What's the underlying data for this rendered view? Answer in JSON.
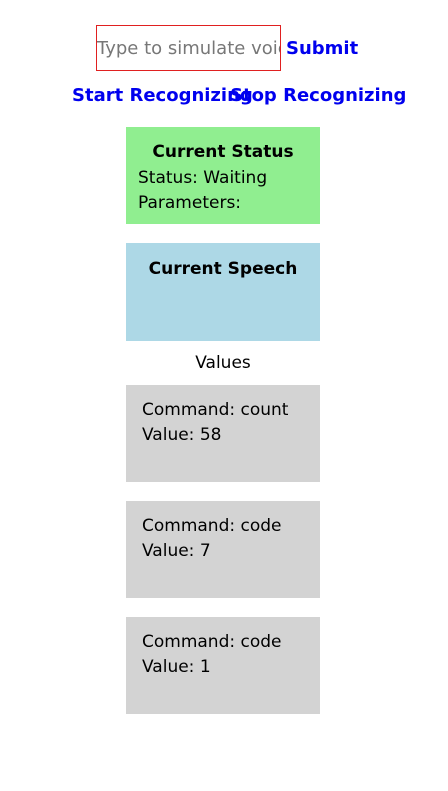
{
  "voice": {
    "placeholder": "Type to simulate voice",
    "value": "",
    "submit_label": "Submit"
  },
  "controls": {
    "start_label": "Start Recognizing",
    "stop_label": "Stop Recognizing"
  },
  "status": {
    "title": "Current Status",
    "status_line": "Status: Waiting",
    "parameters_line": "Parameters:"
  },
  "speech": {
    "title": "Current Speech",
    "text": ""
  },
  "values": {
    "heading": "Values",
    "items": [
      {
        "command": "Command: count",
        "value": "Value: 58"
      },
      {
        "command": "Command: code",
        "value": "Value: 7"
      },
      {
        "command": "Command: code",
        "value": "Value: 1"
      }
    ]
  },
  "colors": {
    "status_panel": "#90ee90",
    "speech_panel": "#add8e6",
    "value_card": "#d3d3d3",
    "link": "#0000ee",
    "input_border": "#e02020"
  }
}
